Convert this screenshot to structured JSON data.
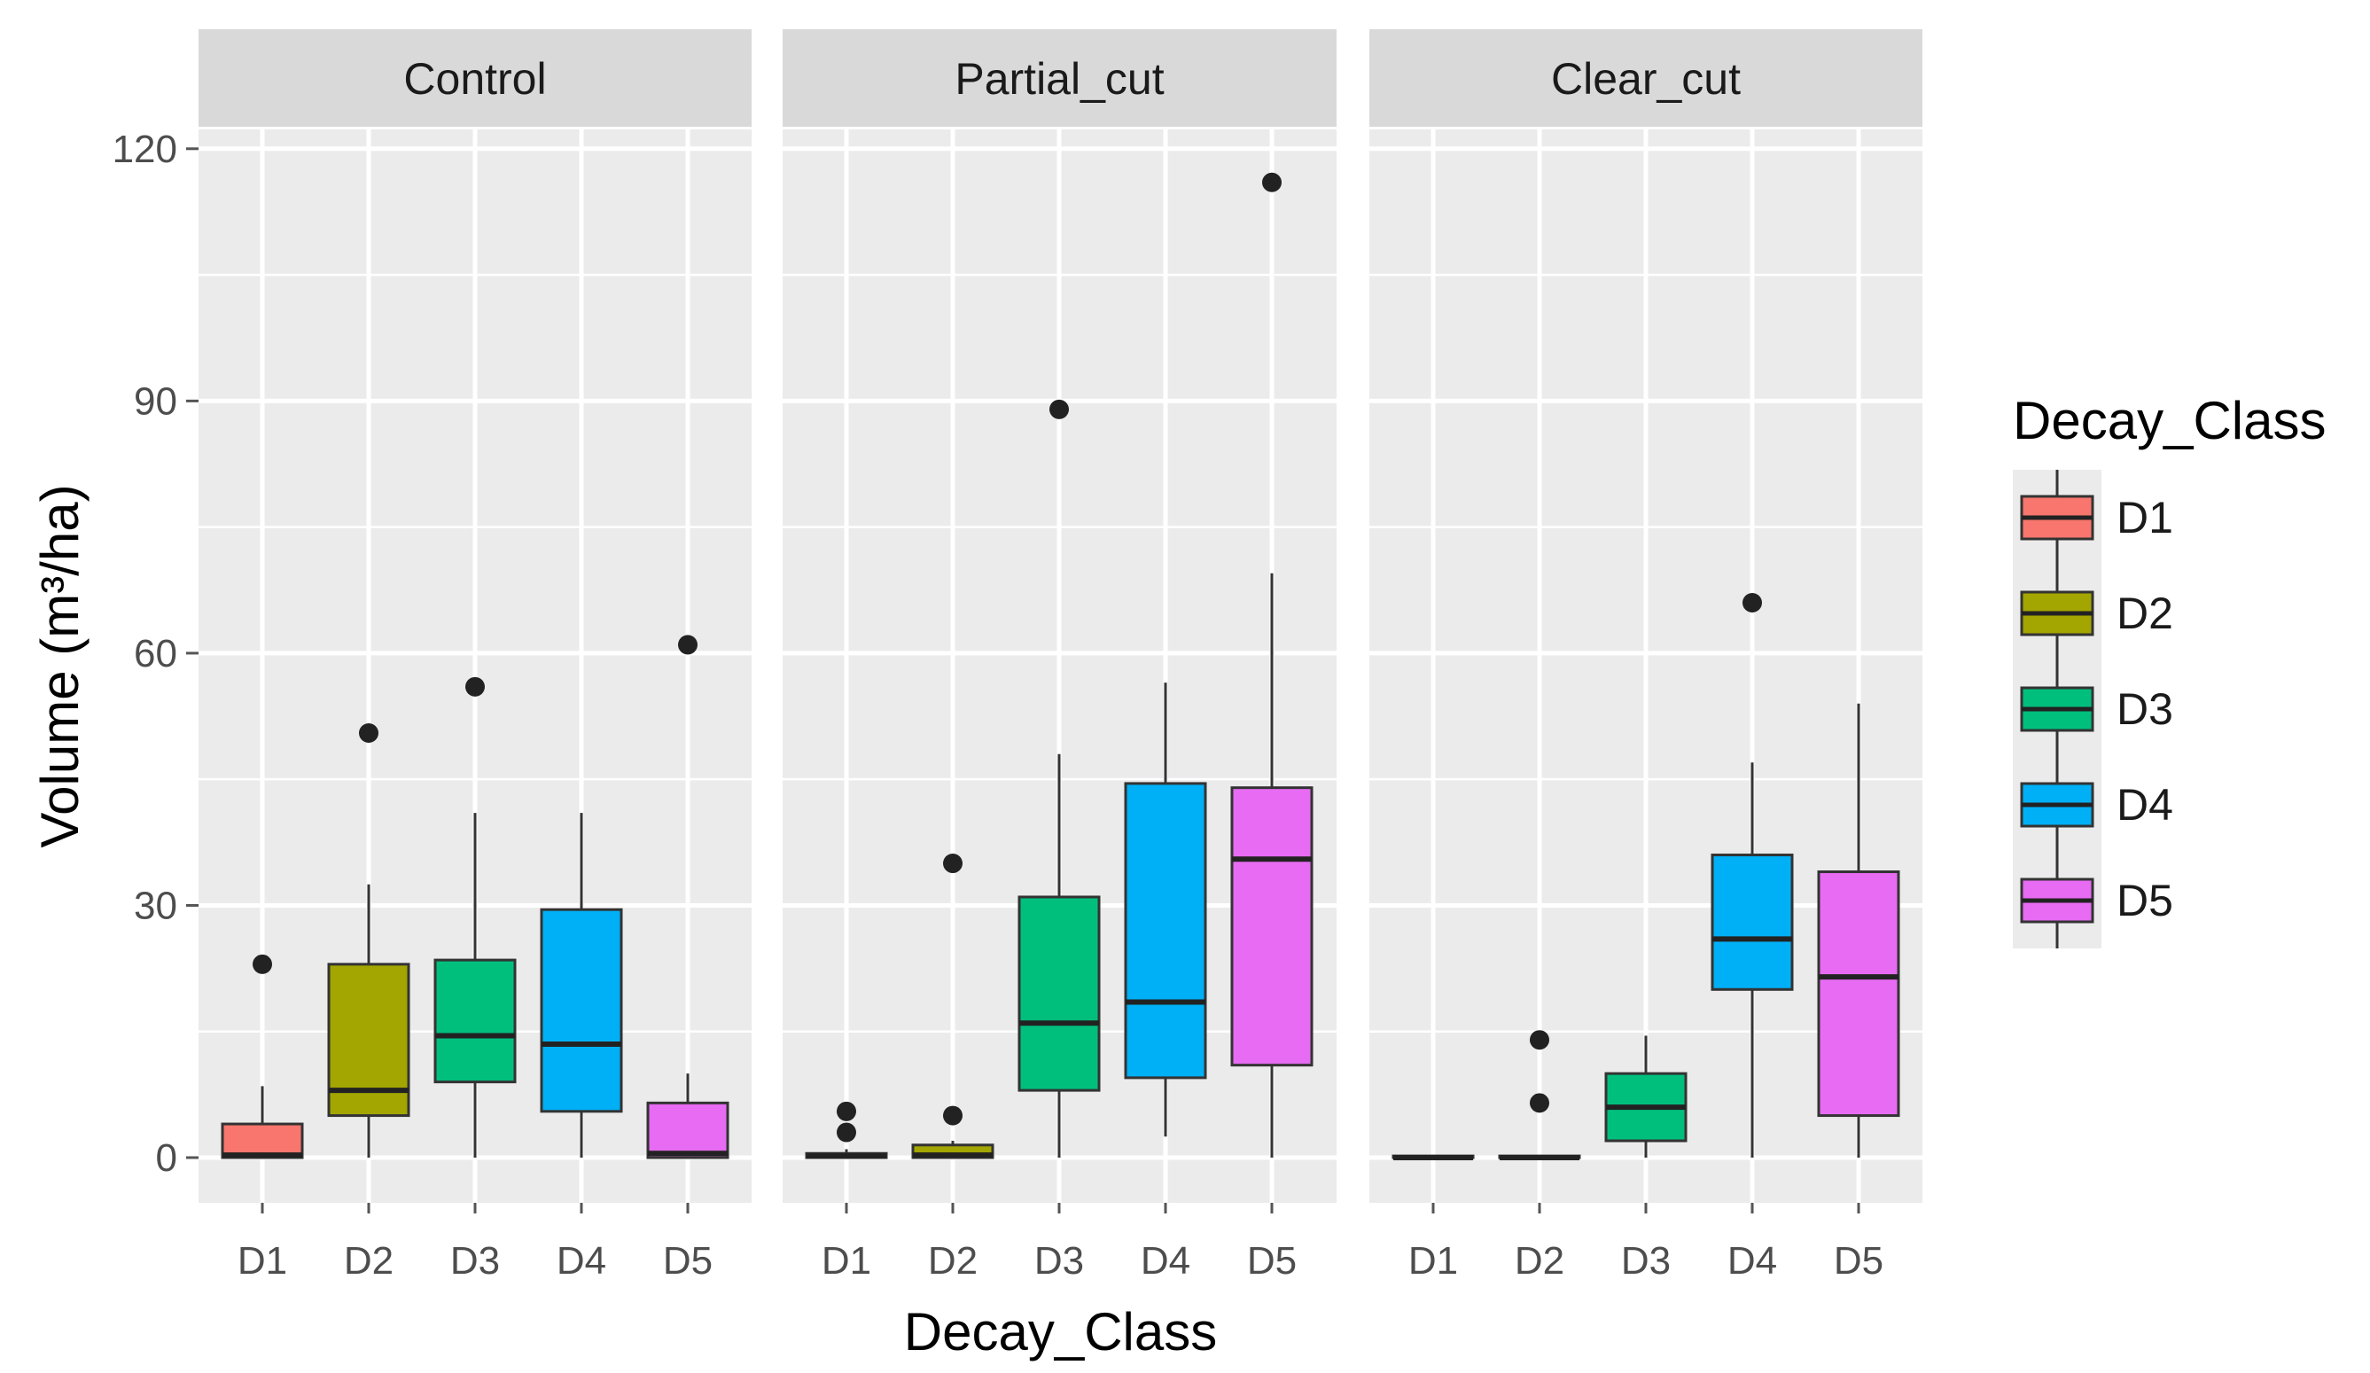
{
  "chart_data": {
    "type": "box",
    "facets": [
      "Control",
      "Partial_cut",
      "Clear_cut"
    ],
    "categories": [
      "D1",
      "D2",
      "D3",
      "D4",
      "D5"
    ],
    "xlabel": "Decay_Class",
    "ylabel": "Volume (m³/ha)",
    "ylim": [
      -5,
      132
    ],
    "yticks": [
      0,
      30,
      60,
      90,
      120
    ],
    "ytick_labels": [
      "0",
      "30",
      "60",
      "90",
      "120"
    ],
    "grid": true,
    "legend": {
      "title": "Decay_Class",
      "position": "right",
      "entries": [
        "D1",
        "D2",
        "D3",
        "D4",
        "D5"
      ]
    },
    "colors": {
      "D1": "#F8766D",
      "D2": "#A3A500",
      "D3": "#00BF7D",
      "D4": "#00B0F6",
      "D5": "#E76BF3",
      "panel_bg": "#EBEBEB",
      "strip_bg": "#D9D9D9",
      "grid": "#FFFFFF",
      "outlier": "#222222"
    },
    "boxes": {
      "Control": [
        {
          "cat": "D1",
          "min": 0,
          "q1": 0,
          "median": 0.3,
          "q3": 4,
          "max": 8.5,
          "outliers": [
            23
          ]
        },
        {
          "cat": "D2",
          "min": 0,
          "q1": 5,
          "median": 8,
          "q3": 23,
          "max": 32.5,
          "outliers": [
            50.5
          ]
        },
        {
          "cat": "D3",
          "min": 0,
          "q1": 9,
          "median": 14.5,
          "q3": 23.5,
          "max": 41,
          "outliers": [
            56
          ]
        },
        {
          "cat": "D4",
          "min": 0,
          "q1": 5.5,
          "median": 13.5,
          "q3": 29.5,
          "max": 41,
          "outliers": []
        },
        {
          "cat": "D5",
          "min": 0,
          "q1": 0,
          "median": 0.5,
          "q3": 6.5,
          "max": 10,
          "outliers": [
            61
          ]
        }
      ],
      "Partial_cut": [
        {
          "cat": "D1",
          "min": 0,
          "q1": 0,
          "median": 0.2,
          "q3": 0.5,
          "max": 1,
          "outliers": [
            3,
            5.5
          ]
        },
        {
          "cat": "D2",
          "min": 0,
          "q1": 0,
          "median": 0.3,
          "q3": 1.5,
          "max": 2,
          "outliers": [
            5,
            35
          ]
        },
        {
          "cat": "D3",
          "min": 0,
          "q1": 8,
          "median": 16,
          "q3": 31,
          "max": 48,
          "outliers": [
            89
          ]
        },
        {
          "cat": "D4",
          "min": 2.5,
          "q1": 9.5,
          "median": 18.5,
          "q3": 44.5,
          "max": 56.5,
          "outliers": []
        },
        {
          "cat": "D5",
          "min": 0,
          "q1": 11,
          "median": 35.5,
          "q3": 44,
          "max": 69.5,
          "outliers": [
            116
          ]
        }
      ],
      "Clear_cut": [
        {
          "cat": "D1",
          "min": 0,
          "q1": 0,
          "median": 0,
          "q3": 0.2,
          "max": 0.3,
          "outliers": []
        },
        {
          "cat": "D2",
          "min": 0,
          "q1": 0,
          "median": 0,
          "q3": 0.2,
          "max": 0.3,
          "outliers": [
            6.5,
            14
          ]
        },
        {
          "cat": "D3",
          "min": 0,
          "q1": 2,
          "median": 6,
          "q3": 10,
          "max": 14.5,
          "outliers": []
        },
        {
          "cat": "D4",
          "min": 0,
          "q1": 20,
          "median": 26,
          "q3": 36,
          "max": 47,
          "outliers": [
            66
          ]
        },
        {
          "cat": "D5",
          "min": 0,
          "q1": 5,
          "median": 21.5,
          "q3": 34,
          "max": 54,
          "outliers": []
        }
      ]
    }
  }
}
